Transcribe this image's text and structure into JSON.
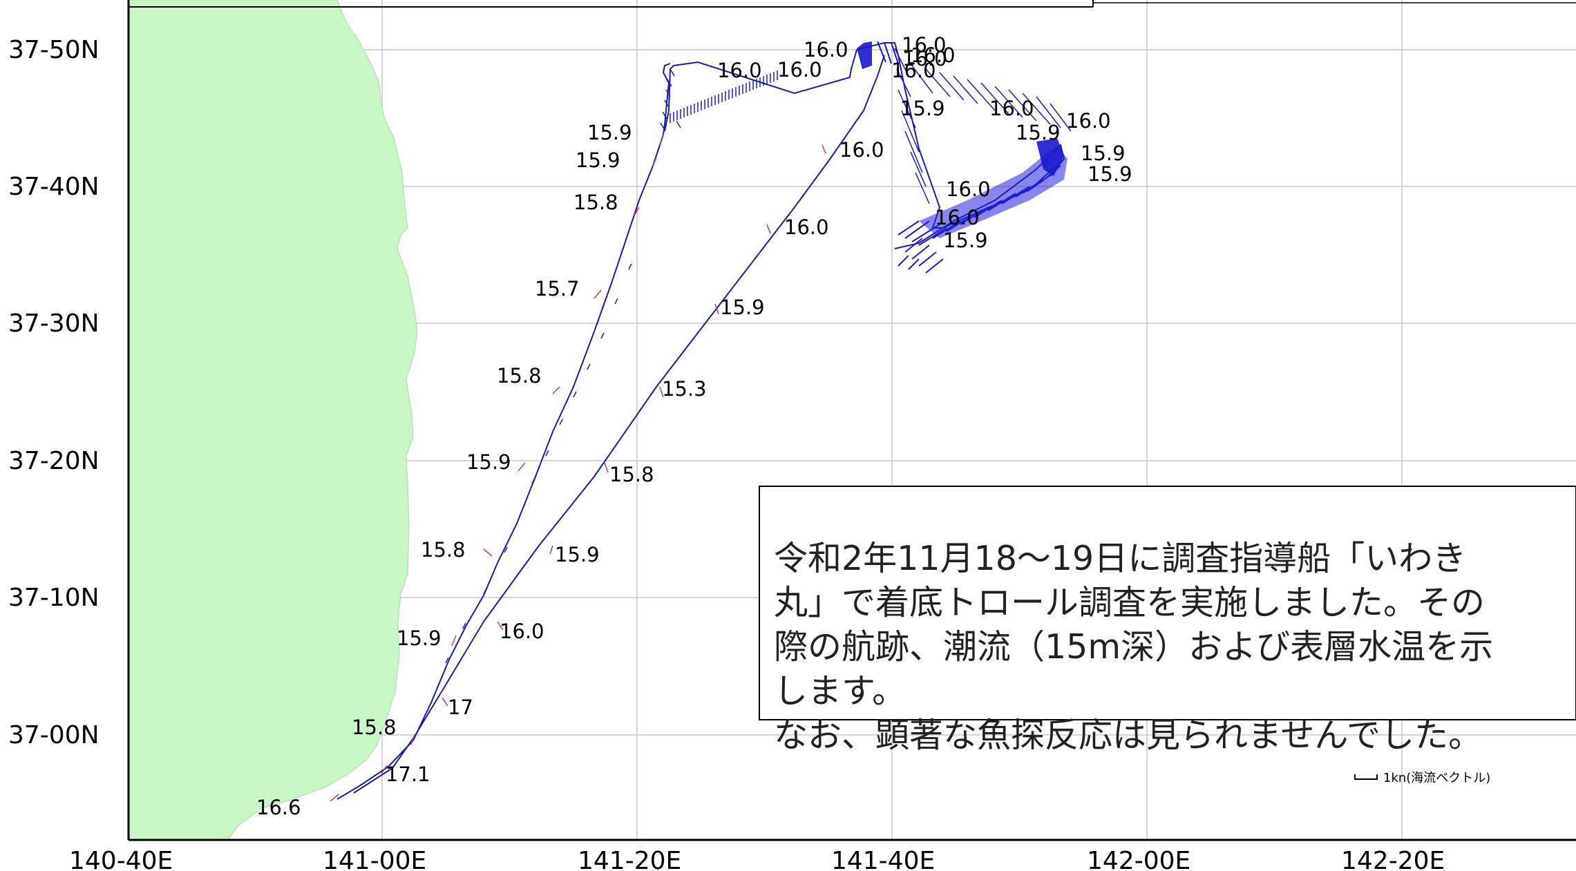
{
  "map": {
    "lat_ticks": [
      "37-50N",
      "37-40N",
      "37-30N",
      "37-20N",
      "37-10N",
      "37-00N"
    ],
    "lon_ticks": [
      "140-40E",
      "141-00E",
      "141-20E",
      "141-40E",
      "142-00E",
      "142-20E"
    ],
    "land_color": "#c8f7c5",
    "track_color": "#1a1aa8",
    "current_vector_color": "#1a1acc",
    "temperature_labels": [
      {
        "text": "16.0"
      },
      {
        "text": "16.0"
      },
      {
        "text": "16.0"
      },
      {
        "text": "16.0"
      },
      {
        "text": "16.0"
      },
      {
        "text": "16.0"
      },
      {
        "text": "16.0"
      },
      {
        "text": "15.9"
      },
      {
        "text": "15.9"
      },
      {
        "text": "16.0"
      },
      {
        "text": "16.0"
      },
      {
        "text": "15.9"
      },
      {
        "text": "15.9"
      },
      {
        "text": "15.9"
      },
      {
        "text": "16.0"
      },
      {
        "text": "15.9"
      },
      {
        "text": "15.8"
      },
      {
        "text": "16.0"
      },
      {
        "text": "16.0"
      },
      {
        "text": "16.0"
      },
      {
        "text": "15.9"
      },
      {
        "text": "15.7"
      },
      {
        "text": "15.9"
      },
      {
        "text": "15.8"
      },
      {
        "text": "15.3"
      },
      {
        "text": "15.9"
      },
      {
        "text": "15.8"
      },
      {
        "text": "15.8"
      },
      {
        "text": "15.9"
      },
      {
        "text": "15.9"
      },
      {
        "text": "16.0"
      },
      {
        "text": "17"
      },
      {
        "text": "15.8"
      },
      {
        "text": "17.1"
      },
      {
        "text": "16.6"
      }
    ]
  },
  "note": {
    "text": "令和2年11月18〜19日に調査指導船「いわき\n丸」で着底トロール調査を実施しました。その\n際の航跡、潮流（15m深）および表層水温を示\nします。\nなお、顕著な魚探反応は見られませんでした。"
  },
  "legend": {
    "scale_label": "1kn(海流ベクトル)"
  }
}
